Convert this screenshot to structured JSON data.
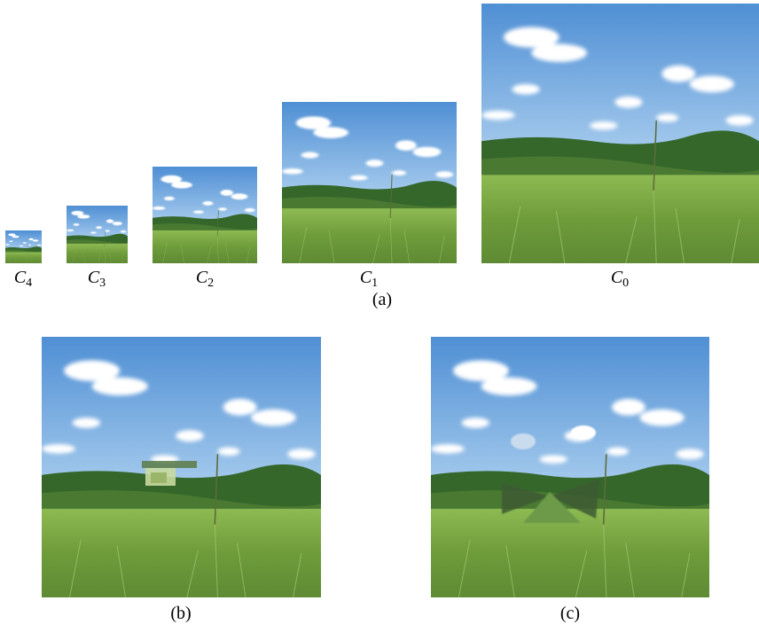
{
  "pyramid": [
    {
      "base": "C",
      "sub": "4"
    },
    {
      "base": "C",
      "sub": "3"
    },
    {
      "base": "C",
      "sub": "2"
    },
    {
      "base": "C",
      "sub": "1"
    },
    {
      "base": "C",
      "sub": "0"
    }
  ],
  "captions": {
    "a": "(a)",
    "b": "(b)",
    "c": "(c)"
  }
}
